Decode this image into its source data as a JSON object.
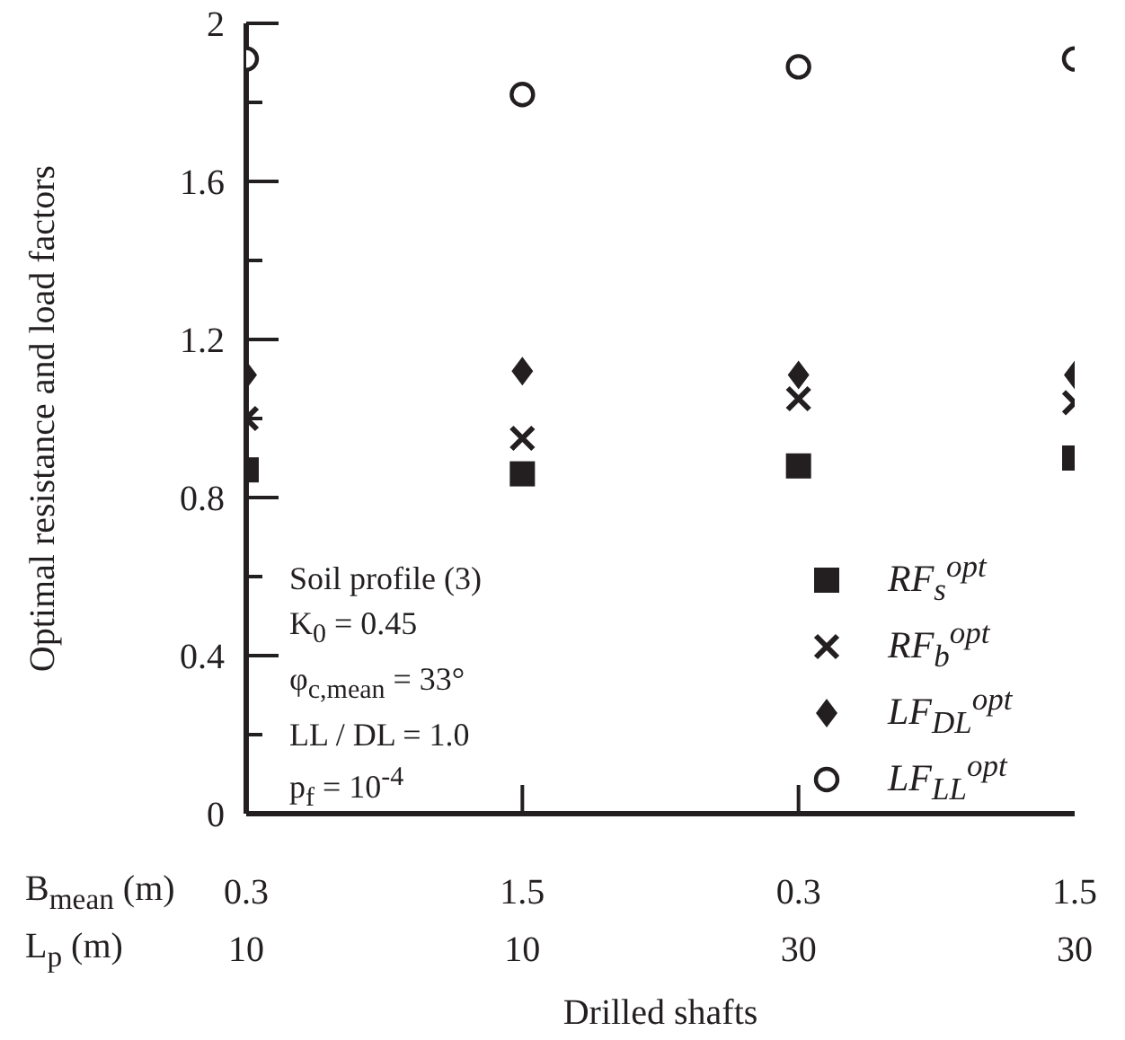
{
  "chart_data": {
    "type": "scatter",
    "xlabel": "Drilled shafts",
    "ylabel": "Optimal resistance and load factors",
    "categories": [
      "0.3\n10",
      "1.5\n10",
      "0.3\n30",
      "1.5\n30"
    ],
    "series": [
      {
        "name": "RF$_{s}$$^{opt}$",
        "color": "#231f20",
        "marker": "square",
        "values": [
          0.87,
          0.86,
          0.88,
          0.9
        ]
      },
      {
        "name": "RF$_{b}$$^{opt}$",
        "color": "#231f20",
        "marker": "cross",
        "values": [
          1.0,
          0.95,
          1.05,
          1.04
        ]
      },
      {
        "name": "LF$_{DL}$$^{opt}$",
        "color": "#231f20",
        "marker": "diamond",
        "values": [
          1.11,
          1.12,
          1.11,
          1.11
        ]
      },
      {
        "name": "LF$_{LL}$$^{opt}$",
        "color": "#231f20",
        "marker": "circle",
        "values": [
          1.91,
          1.82,
          1.89,
          1.91
        ]
      }
    ],
    "ylim": [
      0,
      2
    ],
    "yticks": [
      0,
      {
        "value": 0.2,
        "label": null
      },
      0.4,
      {
        "value": 0.6,
        "label": null
      },
      0.8,
      {
        "value": 1.0,
        "label": null
      },
      1.2,
      {
        "value": 1.4,
        "label": null
      },
      1.6,
      {
        "value": 1.8,
        "label": null
      },
      2
    ],
    "annotations": [
      "Soil profile (3)",
      "K$_{0}$ = 0.45",
      "φ$_{c,mean}$ = 33°",
      "LL / DL = 1.0",
      "p$_{f}$ = 10$^{-4}$",
      "B$_{mean}$ (m)",
      "L$_{p}$ (m)"
    ],
    "legend": "bottom right"
  }
}
